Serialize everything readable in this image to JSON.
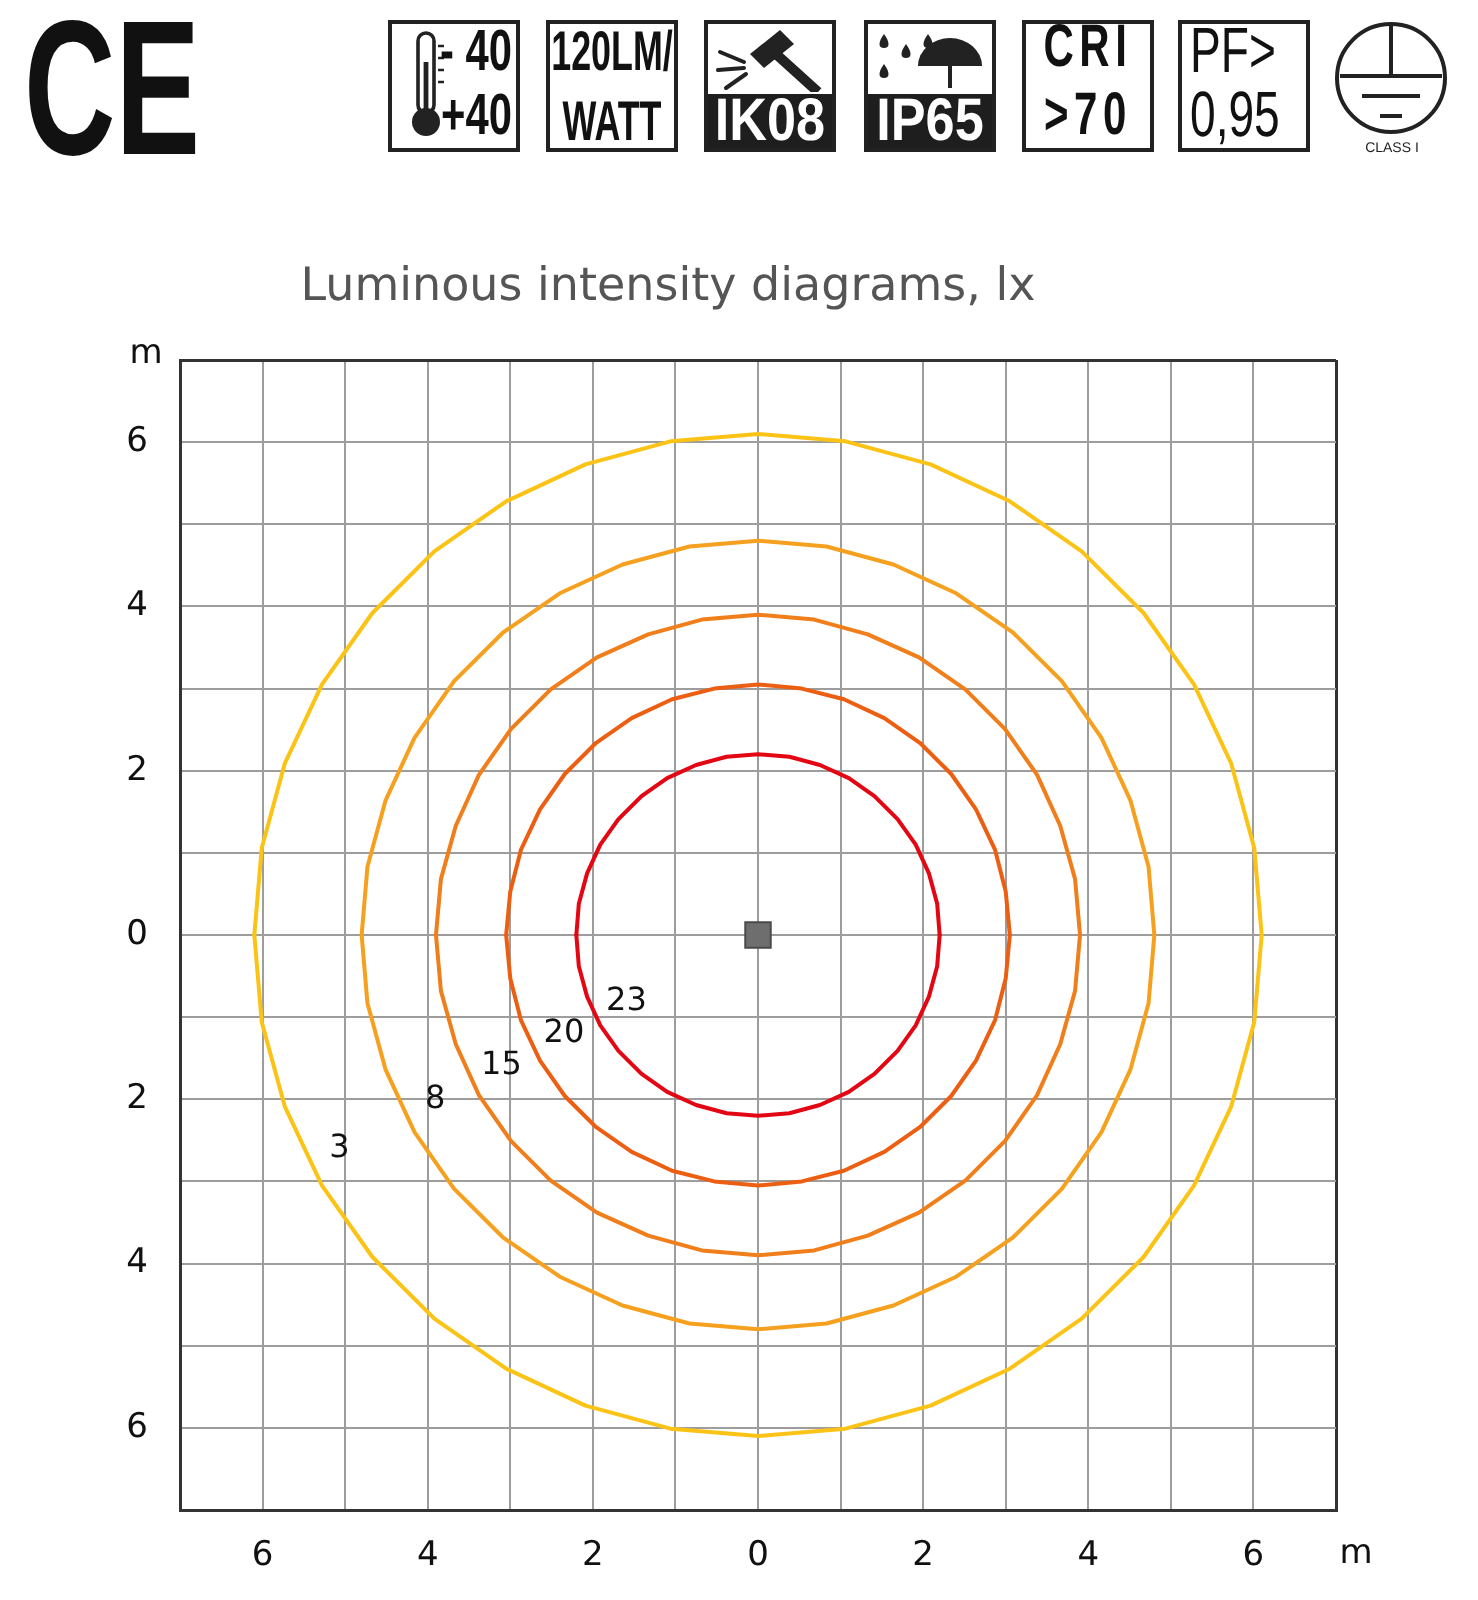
{
  "chart_data": {
    "type": "line",
    "title": "Luminous intensity diagrams, lx",
    "xlabel": "m",
    "ylabel": "m",
    "xlim": [
      -7,
      7
    ],
    "ylim": [
      -7,
      7
    ],
    "xticks": [
      {
        "value": -7,
        "label": null
      },
      {
        "value": -6,
        "label": "6"
      },
      {
        "value": -5,
        "label": null
      },
      {
        "value": -4,
        "label": "4"
      },
      {
        "value": -3,
        "label": null
      },
      {
        "value": -2,
        "label": "2"
      },
      {
        "value": -1,
        "label": null
      },
      0,
      {
        "value": 1,
        "label": null
      },
      2,
      {
        "value": 3,
        "label": null
      },
      4,
      {
        "value": 5,
        "label": null
      },
      6,
      {
        "value": 7,
        "label": null
      }
    ],
    "yticks": [
      {
        "value": -7,
        "label": null
      },
      {
        "value": -6,
        "label": "6"
      },
      {
        "value": -5,
        "label": null
      },
      {
        "value": -4,
        "label": "4"
      },
      {
        "value": -3,
        "label": null
      },
      {
        "value": -2,
        "label": "2"
      },
      {
        "value": -1,
        "label": null
      },
      0,
      {
        "value": 1,
        "label": null
      },
      2,
      {
        "value": 3,
        "label": null
      },
      4,
      {
        "value": 5,
        "label": null
      },
      6,
      {
        "value": 7,
        "label": null
      }
    ],
    "grid": true,
    "legend": false,
    "marker": "none",
    "line_style": "solid",
    "annotations": [
      "CE",
      "- 40",
      "+40",
      "120LM/WATT",
      "IK08",
      "IP65",
      "CRI >70",
      "PF> 0,95",
      "CLASS I"
    ],
    "series": [
      {
        "name": "23",
        "color": "#e30613",
        "x": [
          -2.2,
          -2.17,
          -2.07,
          -1.91,
          -1.69,
          -1.41,
          -1.1,
          -0.75,
          -0.38,
          0,
          0.38,
          0.75,
          1.1,
          1.41,
          1.69,
          1.91,
          2.07,
          2.17,
          2.2
        ],
        "values": [
          0,
          -0.38,
          -0.75,
          -1.1,
          -1.41,
          -1.69,
          -1.91,
          -2.07,
          -2.17,
          -2.2,
          -2.17,
          -2.07,
          -1.91,
          -1.69,
          -1.41,
          -1.1,
          -0.75,
          -0.38,
          0
        ]
      },
      {
        "color": "#e30613",
        "x": [
          -2.2,
          -2.17,
          -2.07,
          -1.91,
          -1.69,
          -1.41,
          -1.1,
          -0.75,
          -0.38,
          0,
          0.38,
          0.75,
          1.1,
          1.41,
          1.69,
          1.91,
          2.07,
          2.17,
          2.2
        ],
        "values": [
          0,
          0.38,
          0.75,
          1.1,
          1.41,
          1.69,
          1.91,
          2.07,
          2.17,
          2.2,
          2.17,
          2.07,
          1.91,
          1.69,
          1.41,
          1.1,
          0.75,
          0.38,
          0
        ]
      },
      {
        "name": "20",
        "color": "#ec5f13",
        "x": [
          -3.05,
          -3,
          -2.87,
          -2.64,
          -2.34,
          -1.96,
          -1.53,
          -1.04,
          -0.53,
          0,
          0.53,
          1.04,
          1.53,
          1.96,
          2.34,
          2.64,
          2.87,
          3,
          3.05
        ],
        "values": [
          0,
          -0.53,
          -1.04,
          -1.53,
          -1.96,
          -2.34,
          -2.64,
          -2.87,
          -3,
          -3.05,
          -3,
          -2.87,
          -2.64,
          -2.34,
          -1.96,
          -1.53,
          -1.04,
          -0.53,
          0
        ]
      },
      {
        "color": "#ec5f13",
        "x": [
          -3.05,
          -3,
          -2.87,
          -2.64,
          -2.34,
          -1.96,
          -1.53,
          -1.04,
          -0.53,
          0,
          0.53,
          1.04,
          1.53,
          1.96,
          2.34,
          2.64,
          2.87,
          3,
          3.05
        ],
        "values": [
          0,
          0.53,
          1.04,
          1.53,
          1.96,
          2.34,
          2.64,
          2.87,
          3,
          3.05,
          3,
          2.87,
          2.64,
          2.34,
          1.96,
          1.53,
          1.04,
          0.53,
          0
        ]
      },
      {
        "name": "15",
        "color": "#f07e1b",
        "x": [
          -3.9,
          -3.84,
          -3.66,
          -3.38,
          -2.99,
          -2.51,
          -1.95,
          -1.33,
          -0.68,
          0,
          0.68,
          1.33,
          1.95,
          2.51,
          2.99,
          3.38,
          3.66,
          3.84,
          3.9
        ],
        "values": [
          0,
          -0.68,
          -1.33,
          -1.95,
          -2.51,
          -2.99,
          -3.38,
          -3.66,
          -3.84,
          -3.9,
          -3.84,
          -3.66,
          -3.38,
          -2.99,
          -2.51,
          -1.95,
          -1.33,
          -0.68,
          0
        ]
      },
      {
        "color": "#f07e1b",
        "x": [
          -3.9,
          -3.84,
          -3.66,
          -3.38,
          -2.99,
          -2.51,
          -1.95,
          -1.33,
          -0.68,
          0,
          0.68,
          1.33,
          1.95,
          2.51,
          2.99,
          3.38,
          3.66,
          3.84,
          3.9
        ],
        "values": [
          0,
          0.68,
          1.33,
          1.95,
          2.51,
          2.99,
          3.38,
          3.66,
          3.84,
          3.9,
          3.84,
          3.66,
          3.38,
          2.99,
          2.51,
          1.95,
          1.33,
          0.68,
          0
        ]
      },
      {
        "name": "8",
        "color": "#f5a01f",
        "x": [
          -4.8,
          -4.73,
          -4.51,
          -4.16,
          -3.68,
          -3.09,
          -2.4,
          -1.64,
          -0.83,
          0,
          0.83,
          1.64,
          2.4,
          3.09,
          3.68,
          4.16,
          4.51,
          4.73,
          4.8
        ],
        "values": [
          0,
          -0.83,
          -1.64,
          -2.4,
          -3.09,
          -3.68,
          -4.16,
          -4.51,
          -4.73,
          -4.8,
          -4.73,
          -4.51,
          -4.16,
          -3.68,
          -3.09,
          -2.4,
          -1.64,
          -0.83,
          0
        ]
      },
      {
        "color": "#f5a01f",
        "x": [
          -4.8,
          -4.73,
          -4.51,
          -4.16,
          -3.68,
          -3.09,
          -2.4,
          -1.64,
          -0.83,
          0,
          0.83,
          1.64,
          2.4,
          3.09,
          3.68,
          4.16,
          4.51,
          4.73,
          4.8
        ],
        "values": [
          0,
          0.83,
          1.64,
          2.4,
          3.09,
          3.68,
          4.16,
          4.51,
          4.73,
          4.8,
          4.73,
          4.51,
          4.16,
          3.68,
          3.09,
          2.4,
          1.64,
          0.83,
          0
        ]
      },
      {
        "name": "3",
        "color": "#fbc315",
        "x": [
          -6.1,
          -6.01,
          -5.73,
          -5.28,
          -4.67,
          -3.92,
          -3.05,
          -2.09,
          -1.06,
          0,
          1.06,
          2.09,
          3.05,
          3.92,
          4.67,
          5.28,
          5.73,
          6.01,
          6.1
        ],
        "values": [
          0,
          -1.06,
          -2.09,
          -3.05,
          -3.92,
          -4.67,
          -5.28,
          -5.73,
          -6.01,
          -6.1,
          -6.01,
          -5.73,
          -5.28,
          -4.67,
          -3.92,
          -3.05,
          -2.09,
          -1.06,
          0
        ]
      },
      {
        "color": "#fbc315",
        "x": [
          -6.1,
          -6.01,
          -5.73,
          -5.28,
          -4.67,
          -3.92,
          -3.05,
          -2.09,
          -1.06,
          0,
          1.06,
          2.09,
          3.05,
          3.92,
          4.67,
          5.28,
          5.73,
          6.01,
          6.1
        ],
        "values": [
          0,
          1.06,
          2.09,
          3.05,
          3.92,
          4.67,
          5.28,
          5.73,
          6.01,
          6.1,
          6.01,
          5.73,
          5.28,
          4.67,
          3.92,
          3.05,
          2.09,
          1.06,
          0
        ]
      },
      {
        "type": "scatter",
        "marker": "square",
        "color": "#6e6e6e",
        "x": [
          0
        ],
        "values": [
          0
        ]
      }
    ]
  }
}
